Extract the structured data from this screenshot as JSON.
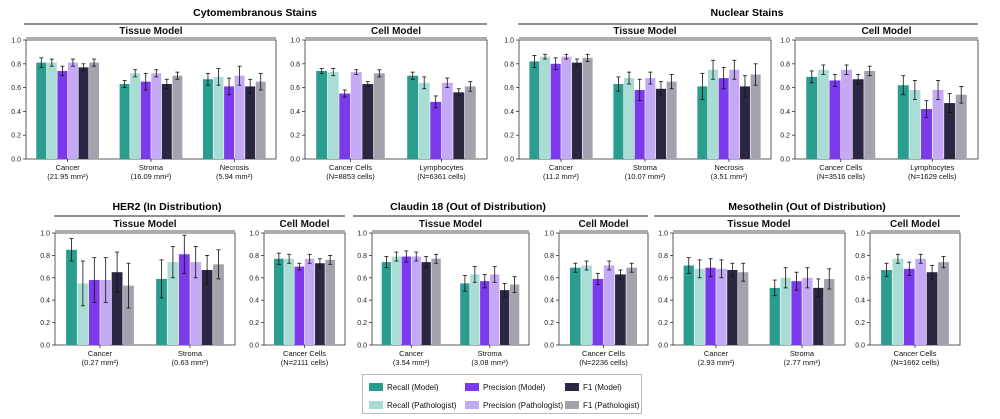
{
  "colors": {
    "recall_model": "#2a9d8f",
    "recall_pathologist": "#a8dcd4",
    "precision_model": "#7c3aed",
    "precision_pathologist": "#c4a9f5",
    "f1_model": "#2b2742",
    "f1_pathologist": "#a5a1ad"
  },
  "legend": {
    "items": [
      {
        "label": "Recall (Model)",
        "color_key": "recall_model"
      },
      {
        "label": "Precision (Model)",
        "color_key": "precision_model"
      },
      {
        "label": "F1 (Model)",
        "color_key": "f1_model"
      },
      {
        "label": "Recall (Pathologist)",
        "color_key": "recall_pathologist"
      },
      {
        "label": "Precision (Pathologist)",
        "color_key": "precision_pathologist"
      },
      {
        "label": "F1 (Pathologist)",
        "color_key": "f1_pathologist"
      }
    ]
  },
  "group_titles": [
    "Cytomembranous Stains",
    "Nuclear Stains",
    "HER2 (In Distribution)",
    "Claudin 18 (Out of Distribution)",
    "Mesothelin (Out of Distribution)"
  ],
  "chart_data": [
    {
      "id": "cyto-tissue",
      "type": "bar",
      "group": "Cytomembranous Stains",
      "title": "Tissue Model",
      "ylim": [
        0,
        1.0
      ],
      "yticks": [
        "1.0",
        "0.8",
        "0.6",
        "0.4",
        "0.2",
        "0.0"
      ],
      "categories": [
        [
          "Cancer",
          "(21.95 mm²)"
        ],
        [
          "Stroma",
          "(16.09 mm²)"
        ],
        [
          "Necrosis",
          "(5.94 mm²)"
        ]
      ],
      "values": [
        [
          0.81,
          0.81,
          0.74,
          0.81,
          0.77,
          0.81
        ],
        [
          0.63,
          0.72,
          0.65,
          0.72,
          0.63,
          0.7
        ],
        [
          0.67,
          0.69,
          0.61,
          0.7,
          0.61,
          0.65
        ]
      ],
      "errors": [
        [
          0.04,
          0.03,
          0.04,
          0.03,
          0.03,
          0.03
        ],
        [
          0.03,
          0.03,
          0.07,
          0.03,
          0.04,
          0.03
        ],
        [
          0.05,
          0.07,
          0.07,
          0.08,
          0.06,
          0.07
        ]
      ]
    },
    {
      "id": "cyto-cell",
      "type": "bar",
      "group": "Cytomembranous Stains",
      "title": "Cell Model",
      "ylim": [
        0,
        1.0
      ],
      "yticks": [
        "1.0",
        "0.8",
        "0.6",
        "0.4",
        "0.2",
        "0.0"
      ],
      "categories": [
        [
          "Cancer Cells",
          "(N=8853 cells)"
        ],
        [
          "Lymphocytes",
          "(N=6361 cells)"
        ]
      ],
      "values": [
        [
          0.74,
          0.73,
          0.55,
          0.73,
          0.63,
          0.72
        ],
        [
          0.7,
          0.64,
          0.48,
          0.64,
          0.56,
          0.61
        ]
      ],
      "errors": [
        [
          0.02,
          0.03,
          0.03,
          0.02,
          0.02,
          0.03
        ],
        [
          0.03,
          0.05,
          0.05,
          0.04,
          0.03,
          0.04
        ]
      ]
    },
    {
      "id": "nuc-tissue",
      "type": "bar",
      "group": "Nuclear Stains",
      "title": "Tissue Model",
      "ylim": [
        0,
        1.0
      ],
      "yticks": [
        "1.0",
        "0.8",
        "0.6",
        "0.4",
        "0.2",
        "0.0"
      ],
      "categories": [
        [
          "Cancer",
          "(11.2 mm²)"
        ],
        [
          "Stroma",
          "(10.07 mm²)"
        ],
        [
          "Necrosis",
          "(3.51 mm²)"
        ]
      ],
      "values": [
        [
          0.82,
          0.86,
          0.8,
          0.86,
          0.81,
          0.85
        ],
        [
          0.63,
          0.68,
          0.58,
          0.68,
          0.59,
          0.65
        ],
        [
          0.61,
          0.75,
          0.68,
          0.75,
          0.61,
          0.71
        ]
      ],
      "errors": [
        [
          0.05,
          0.02,
          0.05,
          0.02,
          0.03,
          0.03
        ],
        [
          0.06,
          0.05,
          0.09,
          0.05,
          0.06,
          0.06
        ],
        [
          0.11,
          0.08,
          0.09,
          0.08,
          0.09,
          0.09
        ]
      ]
    },
    {
      "id": "nuc-cell",
      "type": "bar",
      "group": "Nuclear Stains",
      "title": "Cell Model",
      "ylim": [
        0,
        1.0
      ],
      "yticks": [
        "1.0",
        "0.8",
        "0.6",
        "0.4",
        "0.2",
        "0.0"
      ],
      "categories": [
        [
          "Cancer Cells",
          "(N=3516 cells)"
        ],
        [
          "Lymphocytes",
          "(N=1629 cells)"
        ]
      ],
      "values": [
        [
          0.69,
          0.75,
          0.66,
          0.75,
          0.67,
          0.74
        ],
        [
          0.62,
          0.58,
          0.42,
          0.58,
          0.47,
          0.54
        ]
      ],
      "errors": [
        [
          0.05,
          0.04,
          0.05,
          0.04,
          0.04,
          0.04
        ],
        [
          0.08,
          0.08,
          0.07,
          0.08,
          0.08,
          0.07
        ]
      ]
    },
    {
      "id": "her2-tissue",
      "type": "bar",
      "group": "HER2 (In Distribution)",
      "title": "Tissue Model",
      "ylim": [
        0,
        1.0
      ],
      "yticks": [
        "1.0",
        "0.8",
        "0.6",
        "0.4",
        "0.2",
        "0.0"
      ],
      "categories": [
        [
          "Cancer",
          "(0.27 mm²)"
        ],
        [
          "Stroma",
          "(0.63 mm²)"
        ]
      ],
      "values": [
        [
          0.85,
          0.55,
          0.58,
          0.58,
          0.65,
          0.53
        ],
        [
          0.59,
          0.74,
          0.81,
          0.74,
          0.67,
          0.72
        ]
      ],
      "errors": [
        [
          0.1,
          0.2,
          0.2,
          0.2,
          0.18,
          0.2
        ],
        [
          0.17,
          0.14,
          0.17,
          0.14,
          0.13,
          0.13
        ]
      ]
    },
    {
      "id": "her2-cell",
      "type": "bar",
      "group": "HER2 (In Distribution)",
      "title": "Cell Model",
      "ylim": [
        0,
        1.0
      ],
      "yticks": [
        "1.0",
        "0.8",
        "0.6",
        "0.4",
        "0.2",
        "0.0"
      ],
      "categories": [
        [
          "Cancer Cells",
          "(N=2111 cells)"
        ]
      ],
      "values": [
        [
          0.77,
          0.77,
          0.7,
          0.77,
          0.73,
          0.76
        ]
      ],
      "errors": [
        [
          0.05,
          0.04,
          0.03,
          0.04,
          0.04,
          0.04
        ]
      ]
    },
    {
      "id": "cld-tissue",
      "type": "bar",
      "group": "Claudin 18 (Out of Distribution)",
      "title": "Tissue Model",
      "ylim": [
        0,
        1.0
      ],
      "yticks": [
        "1.0",
        "0.8",
        "0.6",
        "0.4",
        "0.2",
        "0.0"
      ],
      "categories": [
        [
          "Cancer",
          "(3.54 mm²)"
        ],
        [
          "Stroma",
          "(3.08 mm²)"
        ]
      ],
      "values": [
        [
          0.74,
          0.79,
          0.79,
          0.79,
          0.74,
          0.77
        ],
        [
          0.55,
          0.63,
          0.57,
          0.63,
          0.49,
          0.54
        ]
      ],
      "errors": [
        [
          0.05,
          0.04,
          0.05,
          0.04,
          0.05,
          0.04
        ],
        [
          0.07,
          0.07,
          0.06,
          0.07,
          0.06,
          0.07
        ]
      ]
    },
    {
      "id": "cld-cell",
      "type": "bar",
      "group": "Claudin 18 (Out of Distribution)",
      "title": "Cell Model",
      "ylim": [
        0,
        1.0
      ],
      "yticks": [
        "1.0",
        "0.8",
        "0.6",
        "0.4",
        "0.2",
        "0.0"
      ],
      "categories": [
        [
          "Cancer Cells",
          "(N=2236 cells)"
        ]
      ],
      "values": [
        [
          0.69,
          0.71,
          0.59,
          0.71,
          0.63,
          0.69
        ]
      ],
      "errors": [
        [
          0.04,
          0.04,
          0.05,
          0.04,
          0.04,
          0.04
        ]
      ]
    },
    {
      "id": "meso-tissue",
      "type": "bar",
      "group": "Mesothelin (Out of Distribution)",
      "title": "Tissue Model",
      "ylim": [
        0,
        1.0
      ],
      "yticks": [
        "1.0",
        "0.8",
        "0.6",
        "0.4",
        "0.2",
        "0.0"
      ],
      "categories": [
        [
          "Cancer",
          "(2.93 mm²)"
        ],
        [
          "Stroma",
          "(2.77 mm²)"
        ]
      ],
      "values": [
        [
          0.71,
          0.68,
          0.69,
          0.68,
          0.67,
          0.65
        ],
        [
          0.51,
          0.6,
          0.57,
          0.6,
          0.51,
          0.59
        ]
      ],
      "errors": [
        [
          0.07,
          0.08,
          0.08,
          0.08,
          0.06,
          0.08
        ],
        [
          0.07,
          0.09,
          0.08,
          0.09,
          0.08,
          0.09
        ]
      ]
    },
    {
      "id": "meso-cell",
      "type": "bar",
      "group": "Mesothelin (Out of Distribution)",
      "title": "Cell Model",
      "ylim": [
        0,
        1.0
      ],
      "yticks": [
        "1.0",
        "0.8",
        "0.6",
        "0.4",
        "0.2",
        "0.0"
      ],
      "categories": [
        [
          "Cancer Cells",
          "(N=1662 cells)"
        ]
      ],
      "values": [
        [
          0.67,
          0.77,
          0.68,
          0.77,
          0.65,
          0.74
        ]
      ],
      "errors": [
        [
          0.06,
          0.04,
          0.06,
          0.04,
          0.06,
          0.05
        ]
      ]
    }
  ]
}
